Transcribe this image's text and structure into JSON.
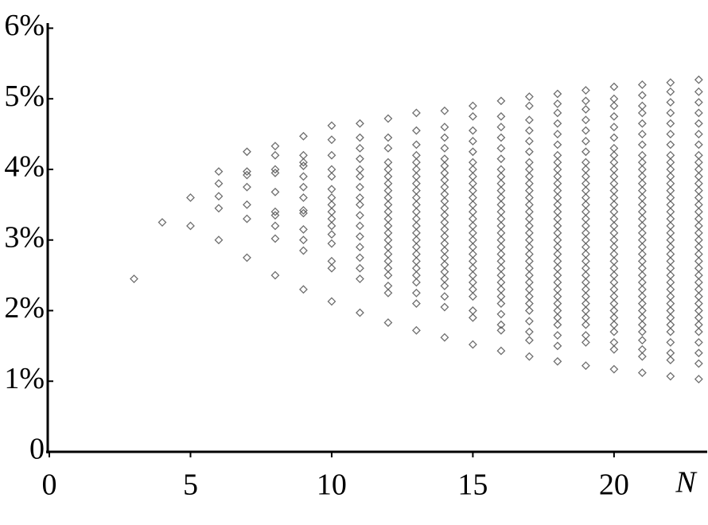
{
  "chart_data": {
    "type": "scatter",
    "x_label": "N",
    "xlim": [
      0,
      23.3
    ],
    "ylim": [
      0,
      6.05
    ],
    "xticks": [
      0,
      5,
      10,
      15,
      20
    ],
    "yticks": [
      0,
      {
        "value": 1,
        "label": "1%"
      },
      {
        "value": 2,
        "label": "2%"
      },
      {
        "value": 3,
        "label": "3%"
      },
      {
        "value": 4,
        "label": "4%"
      },
      {
        "value": 5,
        "label": "5%"
      },
      {
        "value": 6,
        "label": "6%"
      }
    ],
    "color": "#555555",
    "marker": "diamond",
    "x": [
      3,
      4,
      5,
      5,
      6,
      6,
      6,
      6,
      6,
      7,
      7,
      7,
      7,
      7,
      7,
      7,
      8,
      8,
      8,
      8,
      8,
      8,
      8,
      8,
      8,
      8,
      9,
      9,
      9,
      9,
      9,
      9,
      9,
      9,
      9,
      9,
      9,
      9,
      9,
      10,
      10,
      10,
      10,
      10,
      10,
      10,
      10,
      10,
      10,
      10,
      10,
      10,
      10,
      10,
      10,
      11,
      11,
      11,
      11,
      11,
      11,
      11,
      11,
      11,
      11,
      11,
      11,
      11,
      11,
      11,
      11,
      11,
      12,
      12,
      12,
      12,
      12,
      12,
      12,
      12,
      12,
      12,
      12,
      12,
      12,
      12,
      12,
      12,
      12,
      12,
      12,
      12,
      12,
      12,
      12,
      13,
      13,
      13,
      13,
      13,
      13,
      13,
      13,
      13,
      13,
      13,
      13,
      13,
      13,
      13,
      13,
      13,
      13,
      13,
      13,
      13,
      13,
      13,
      13,
      13,
      14,
      14,
      14,
      14,
      14,
      14,
      14,
      14,
      14,
      14,
      14,
      14,
      14,
      14,
      14,
      14,
      14,
      14,
      14,
      14,
      14,
      14,
      14,
      14,
      14,
      14,
      15,
      15,
      15,
      15,
      15,
      15,
      15,
      15,
      15,
      15,
      15,
      15,
      15,
      15,
      15,
      15,
      15,
      15,
      15,
      15,
      15,
      15,
      15,
      15,
      15,
      15,
      15,
      15,
      16,
      16,
      16,
      16,
      16,
      16,
      16,
      16,
      16,
      16,
      16,
      16,
      16,
      16,
      16,
      16,
      16,
      16,
      16,
      16,
      16,
      16,
      16,
      16,
      16,
      16,
      16,
      16,
      16,
      16,
      17,
      17,
      17,
      17,
      17,
      17,
      17,
      17,
      17,
      17,
      17,
      17,
      17,
      17,
      17,
      17,
      17,
      17,
      17,
      17,
      17,
      17,
      17,
      17,
      17,
      17,
      17,
      17,
      17,
      17,
      17,
      17,
      18,
      18,
      18,
      18,
      18,
      18,
      18,
      18,
      18,
      18,
      18,
      18,
      18,
      18,
      18,
      18,
      18,
      18,
      18,
      18,
      18,
      18,
      18,
      18,
      18,
      18,
      18,
      18,
      18,
      18,
      18,
      18,
      18,
      18,
      19,
      19,
      19,
      19,
      19,
      19,
      19,
      19,
      19,
      19,
      19,
      19,
      19,
      19,
      19,
      19,
      19,
      19,
      19,
      19,
      19,
      19,
      19,
      19,
      19,
      19,
      19,
      19,
      19,
      19,
      19,
      19,
      19,
      19,
      20,
      20,
      20,
      20,
      20,
      20,
      20,
      20,
      20,
      20,
      20,
      20,
      20,
      20,
      20,
      20,
      20,
      20,
      20,
      20,
      20,
      20,
      20,
      20,
      20,
      20,
      20,
      20,
      20,
      20,
      20,
      20,
      20,
      20,
      20,
      20,
      21,
      21,
      21,
      21,
      21,
      21,
      21,
      21,
      21,
      21,
      21,
      21,
      21,
      21,
      21,
      21,
      21,
      21,
      21,
      21,
      21,
      21,
      21,
      21,
      21,
      21,
      21,
      21,
      21,
      21,
      21,
      21,
      21,
      21,
      21,
      21,
      21,
      22,
      22,
      22,
      22,
      22,
      22,
      22,
      22,
      22,
      22,
      22,
      22,
      22,
      22,
      22,
      22,
      22,
      22,
      22,
      22,
      22,
      22,
      22,
      22,
      22,
      22,
      22,
      22,
      22,
      22,
      22,
      22,
      22,
      22,
      22,
      22,
      22,
      23,
      23,
      23,
      23,
      23,
      23,
      23,
      23,
      23,
      23,
      23,
      23,
      23,
      23,
      23,
      23,
      23,
      23,
      23,
      23,
      23,
      23,
      23,
      23,
      23,
      23,
      23,
      23,
      23,
      23,
      23,
      23,
      23,
      23,
      23,
      23,
      23
    ],
    "values": [
      2.45,
      3.25,
      3.6,
      3.2,
      3.97,
      3.8,
      3.62,
      3.45,
      3.0,
      4.25,
      3.97,
      3.92,
      3.75,
      3.5,
      3.3,
      2.75,
      4.33,
      4.2,
      4.0,
      3.95,
      3.68,
      3.4,
      3.35,
      3.2,
      3.02,
      2.5,
      4.47,
      4.2,
      4.1,
      4.05,
      3.9,
      3.75,
      3.6,
      3.42,
      3.38,
      3.15,
      3.0,
      2.85,
      2.3,
      4.62,
      4.42,
      4.2,
      4.0,
      3.9,
      3.72,
      3.6,
      3.5,
      3.4,
      3.3,
      3.2,
      3.08,
      2.95,
      2.7,
      2.6,
      2.13,
      4.65,
      4.45,
      4.3,
      4.15,
      4.0,
      3.9,
      3.75,
      3.6,
      3.5,
      3.35,
      3.2,
      3.05,
      2.9,
      2.75,
      2.6,
      2.45,
      1.97,
      4.72,
      4.45,
      4.3,
      4.1,
      4.0,
      3.9,
      3.8,
      3.7,
      3.6,
      3.5,
      3.4,
      3.3,
      3.2,
      3.1,
      3.0,
      2.9,
      2.8,
      2.7,
      2.6,
      2.5,
      2.35,
      2.25,
      1.83,
      4.8,
      4.55,
      4.35,
      4.2,
      4.1,
      4.0,
      3.9,
      3.8,
      3.7,
      3.6,
      3.5,
      3.4,
      3.3,
      3.2,
      3.1,
      3.0,
      2.9,
      2.8,
      2.7,
      2.6,
      2.5,
      2.4,
      2.25,
      2.1,
      1.72,
      4.83,
      4.6,
      4.45,
      4.3,
      4.15,
      4.05,
      3.95,
      3.85,
      3.75,
      3.65,
      3.55,
      3.45,
      3.35,
      3.25,
      3.15,
      3.05,
      2.95,
      2.85,
      2.75,
      2.65,
      2.55,
      2.45,
      2.35,
      2.2,
      2.05,
      1.62,
      4.9,
      4.75,
      4.55,
      4.4,
      4.25,
      4.1,
      4.0,
      3.9,
      3.8,
      3.7,
      3.6,
      3.5,
      3.4,
      3.3,
      3.2,
      3.1,
      3.0,
      2.9,
      2.8,
      2.7,
      2.6,
      2.5,
      2.4,
      2.3,
      2.2,
      2.0,
      1.9,
      1.52,
      4.97,
      4.75,
      4.6,
      4.45,
      4.3,
      4.15,
      4.0,
      3.9,
      3.8,
      3.7,
      3.6,
      3.5,
      3.4,
      3.3,
      3.2,
      3.1,
      3.0,
      2.9,
      2.8,
      2.7,
      2.6,
      2.5,
      2.4,
      2.3,
      2.2,
      2.1,
      1.95,
      1.8,
      1.72,
      1.43,
      5.03,
      4.9,
      4.7,
      4.55,
      4.4,
      4.25,
      4.1,
      4.0,
      3.9,
      3.8,
      3.7,
      3.6,
      3.5,
      3.4,
      3.3,
      3.2,
      3.1,
      3.0,
      2.9,
      2.8,
      2.7,
      2.6,
      2.5,
      2.4,
      2.3,
      2.2,
      2.1,
      2.0,
      1.85,
      1.7,
      1.58,
      1.35,
      5.07,
      4.93,
      4.8,
      4.65,
      4.5,
      4.35,
      4.2,
      4.1,
      4.0,
      3.9,
      3.8,
      3.7,
      3.6,
      3.5,
      3.4,
      3.3,
      3.2,
      3.1,
      3.0,
      2.9,
      2.8,
      2.7,
      2.6,
      2.5,
      2.4,
      2.3,
      2.2,
      2.1,
      2.0,
      1.9,
      1.8,
      1.65,
      1.5,
      1.28,
      5.12,
      4.97,
      4.85,
      4.7,
      4.55,
      4.4,
      4.25,
      4.1,
      4.0,
      3.9,
      3.8,
      3.7,
      3.6,
      3.5,
      3.4,
      3.3,
      3.2,
      3.1,
      3.0,
      2.9,
      2.8,
      2.7,
      2.6,
      2.5,
      2.4,
      2.3,
      2.2,
      2.1,
      2.0,
      1.9,
      1.8,
      1.65,
      1.55,
      1.22,
      5.17,
      5.0,
      4.9,
      4.75,
      4.6,
      4.45,
      4.3,
      4.2,
      4.1,
      4.0,
      3.9,
      3.8,
      3.7,
      3.6,
      3.5,
      3.4,
      3.3,
      3.2,
      3.1,
      3.0,
      2.9,
      2.8,
      2.7,
      2.6,
      2.5,
      2.4,
      2.3,
      2.2,
      2.1,
      2.0,
      1.9,
      1.8,
      1.7,
      1.55,
      1.45,
      1.17,
      5.2,
      5.05,
      4.9,
      4.8,
      4.65,
      4.5,
      4.35,
      4.2,
      4.1,
      4.0,
      3.9,
      3.8,
      3.7,
      3.6,
      3.5,
      3.4,
      3.3,
      3.2,
      3.1,
      3.0,
      2.9,
      2.8,
      2.7,
      2.6,
      2.5,
      2.4,
      2.3,
      2.2,
      2.1,
      2.0,
      1.9,
      1.8,
      1.7,
      1.58,
      1.45,
      1.35,
      1.12,
      5.23,
      5.1,
      4.95,
      4.8,
      4.65,
      4.5,
      4.35,
      4.2,
      4.1,
      4.0,
      3.9,
      3.8,
      3.7,
      3.6,
      3.5,
      3.4,
      3.3,
      3.2,
      3.1,
      3.0,
      2.9,
      2.8,
      2.7,
      2.6,
      2.5,
      2.4,
      2.3,
      2.2,
      2.1,
      2.0,
      1.9,
      1.8,
      1.7,
      1.55,
      1.4,
      1.3,
      1.07,
      5.27,
      5.1,
      4.95,
      4.8,
      4.65,
      4.5,
      4.35,
      4.2,
      4.1,
      4.0,
      3.9,
      3.8,
      3.7,
      3.6,
      3.5,
      3.4,
      3.3,
      3.2,
      3.1,
      3.0,
      2.9,
      2.8,
      2.7,
      2.6,
      2.5,
      2.4,
      2.3,
      2.2,
      2.1,
      2.0,
      1.9,
      1.8,
      1.7,
      1.55,
      1.4,
      1.25,
      1.03
    ]
  }
}
